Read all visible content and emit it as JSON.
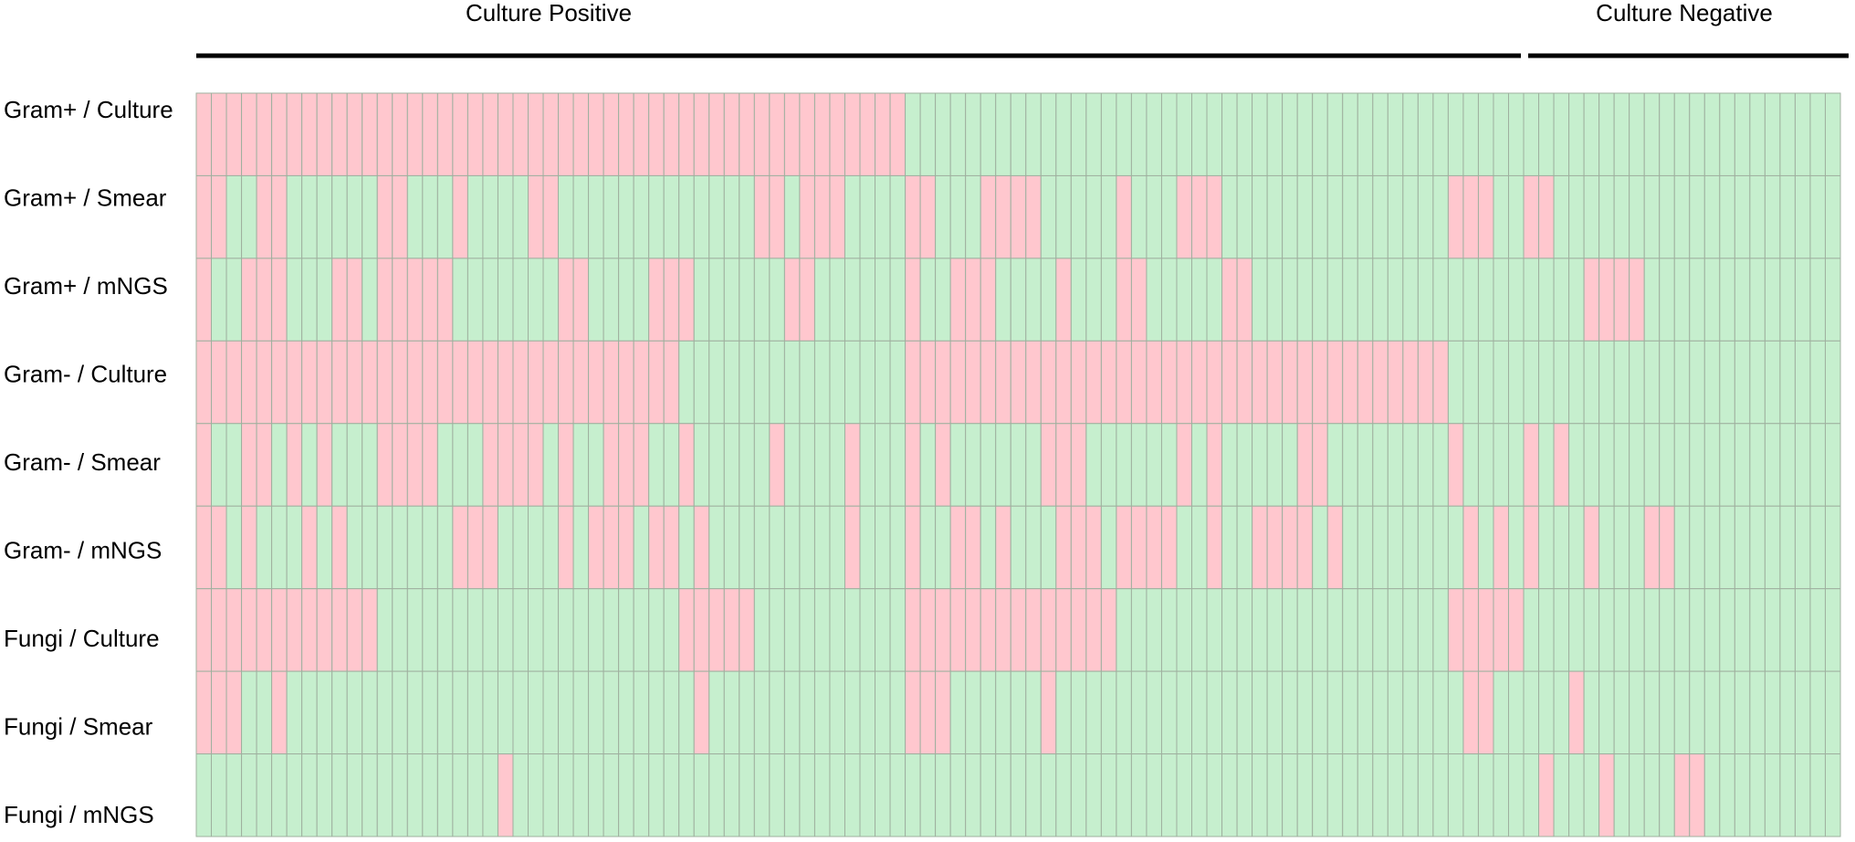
{
  "chart_data": {
    "type": "heatmap",
    "positive_color": "#ffc7ce",
    "negative_color": "#c6efce",
    "grid_color": "#9fb09f",
    "groups": [
      {
        "label": "Culture Positive",
        "columns": 88
      },
      {
        "label": "Culture Negative",
        "columns": 21
      }
    ],
    "rows": [
      {
        "name": "Gram+ / Culture",
        "values": [
          1,
          1,
          1,
          1,
          1,
          1,
          1,
          1,
          1,
          1,
          1,
          1,
          1,
          1,
          1,
          1,
          1,
          1,
          1,
          1,
          1,
          1,
          1,
          1,
          1,
          1,
          1,
          1,
          1,
          1,
          1,
          1,
          1,
          1,
          1,
          1,
          1,
          1,
          1,
          1,
          1,
          1,
          1,
          1,
          1,
          1,
          1,
          0,
          0,
          0,
          0,
          0,
          0,
          0,
          0,
          0,
          0,
          0,
          0,
          0,
          0,
          0,
          0,
          0,
          0,
          0,
          0,
          0,
          0,
          0,
          0,
          0,
          0,
          0,
          0,
          0,
          0,
          0,
          0,
          0,
          0,
          0,
          0,
          0,
          0,
          0,
          0,
          0,
          0,
          0,
          0,
          0,
          0,
          0,
          0,
          0,
          0,
          0,
          0,
          0,
          0,
          0,
          0,
          0,
          0,
          0,
          0,
          0,
          0
        ]
      },
      {
        "name": "Gram+ / Smear",
        "values": [
          1,
          1,
          0,
          0,
          1,
          1,
          0,
          0,
          0,
          0,
          0,
          0,
          1,
          1,
          0,
          0,
          0,
          1,
          0,
          0,
          0,
          0,
          1,
          1,
          0,
          0,
          0,
          0,
          0,
          0,
          0,
          0,
          0,
          0,
          0,
          0,
          0,
          1,
          1,
          0,
          1,
          1,
          1,
          0,
          0,
          0,
          0,
          1,
          1,
          0,
          0,
          0,
          1,
          1,
          1,
          1,
          0,
          0,
          0,
          0,
          0,
          1,
          0,
          0,
          0,
          1,
          1,
          1,
          0,
          0,
          0,
          0,
          0,
          0,
          0,
          0,
          0,
          0,
          0,
          0,
          0,
          0,
          0,
          1,
          1,
          1,
          0,
          0,
          1,
          1,
          0,
          0,
          0,
          0,
          0,
          0,
          0,
          0,
          0,
          0,
          0,
          0,
          0,
          0,
          0,
          0,
          0,
          0,
          0
        ]
      },
      {
        "name": "Gram+ / mNGS",
        "values": [
          1,
          0,
          0,
          1,
          1,
          1,
          0,
          0,
          0,
          1,
          1,
          0,
          1,
          1,
          1,
          1,
          1,
          0,
          0,
          0,
          0,
          0,
          0,
          0,
          1,
          1,
          0,
          0,
          0,
          0,
          1,
          1,
          1,
          0,
          0,
          0,
          0,
          0,
          0,
          1,
          1,
          0,
          0,
          0,
          0,
          0,
          0,
          1,
          0,
          0,
          1,
          1,
          1,
          0,
          0,
          0,
          0,
          1,
          0,
          0,
          0,
          1,
          1,
          0,
          0,
          0,
          0,
          0,
          1,
          1,
          0,
          0,
          0,
          0,
          0,
          0,
          0,
          0,
          0,
          0,
          0,
          0,
          0,
          0,
          0,
          0,
          0,
          0,
          0,
          0,
          0,
          0,
          1,
          1,
          1,
          1,
          0,
          0,
          0,
          0,
          0,
          0,
          0,
          0,
          0,
          0,
          0,
          0,
          0
        ]
      },
      {
        "name": "Gram- / Culture",
        "values": [
          1,
          1,
          1,
          1,
          1,
          1,
          1,
          1,
          1,
          1,
          1,
          1,
          1,
          1,
          1,
          1,
          1,
          1,
          1,
          1,
          1,
          1,
          1,
          1,
          1,
          1,
          1,
          1,
          1,
          1,
          1,
          1,
          0,
          0,
          0,
          0,
          0,
          0,
          0,
          0,
          0,
          0,
          0,
          0,
          0,
          0,
          0,
          1,
          1,
          1,
          1,
          1,
          1,
          1,
          1,
          1,
          1,
          1,
          1,
          1,
          1,
          1,
          1,
          1,
          1,
          1,
          1,
          1,
          1,
          1,
          1,
          1,
          1,
          1,
          1,
          1,
          1,
          1,
          1,
          1,
          1,
          1,
          1,
          0,
          0,
          0,
          0,
          0,
          0,
          0,
          0,
          0,
          0,
          0,
          0,
          0,
          0,
          0,
          0,
          0,
          0,
          0,
          0,
          0,
          0,
          0,
          0,
          0,
          0
        ]
      },
      {
        "name": "Gram- / Smear",
        "values": [
          1,
          0,
          0,
          1,
          1,
          0,
          1,
          0,
          1,
          0,
          0,
          0,
          1,
          1,
          1,
          1,
          0,
          0,
          0,
          1,
          1,
          1,
          1,
          0,
          1,
          0,
          0,
          1,
          1,
          1,
          0,
          0,
          1,
          0,
          0,
          0,
          0,
          0,
          1,
          0,
          0,
          0,
          0,
          1,
          0,
          0,
          0,
          1,
          0,
          1,
          0,
          0,
          0,
          0,
          0,
          0,
          1,
          1,
          1,
          0,
          0,
          0,
          0,
          0,
          0,
          1,
          0,
          1,
          0,
          0,
          0,
          0,
          0,
          1,
          1,
          0,
          0,
          0,
          0,
          0,
          0,
          0,
          0,
          1,
          0,
          0,
          0,
          0,
          1,
          0,
          1,
          0,
          0,
          0,
          0,
          0,
          0,
          0,
          0,
          0,
          0,
          0,
          0,
          0,
          0,
          0,
          0,
          0,
          0
        ]
      },
      {
        "name": "Gram- / mNGS",
        "values": [
          1,
          1,
          0,
          1,
          0,
          0,
          0,
          1,
          0,
          1,
          0,
          0,
          0,
          0,
          0,
          0,
          0,
          1,
          1,
          1,
          0,
          0,
          0,
          0,
          1,
          0,
          1,
          1,
          1,
          0,
          1,
          1,
          0,
          1,
          0,
          0,
          0,
          0,
          0,
          0,
          0,
          0,
          0,
          1,
          0,
          0,
          0,
          1,
          0,
          0,
          1,
          1,
          0,
          1,
          0,
          0,
          0,
          1,
          1,
          1,
          0,
          1,
          1,
          1,
          1,
          0,
          0,
          1,
          0,
          0,
          1,
          1,
          1,
          1,
          0,
          1,
          0,
          0,
          0,
          0,
          0,
          0,
          0,
          0,
          1,
          0,
          1,
          0,
          1,
          0,
          0,
          0,
          1,
          0,
          0,
          0,
          1,
          1,
          0,
          0,
          0,
          0,
          0,
          0,
          0,
          0,
          0,
          0,
          0
        ]
      },
      {
        "name": "Fungi / Culture",
        "values": [
          1,
          1,
          1,
          1,
          1,
          1,
          1,
          1,
          1,
          1,
          1,
          1,
          0,
          0,
          0,
          0,
          0,
          0,
          0,
          0,
          0,
          0,
          0,
          0,
          0,
          0,
          0,
          0,
          0,
          0,
          0,
          0,
          1,
          1,
          1,
          1,
          1,
          0,
          0,
          0,
          0,
          0,
          0,
          0,
          0,
          0,
          0,
          1,
          1,
          1,
          1,
          1,
          1,
          1,
          1,
          1,
          1,
          1,
          1,
          1,
          1,
          0,
          0,
          0,
          0,
          0,
          0,
          0,
          0,
          0,
          0,
          0,
          0,
          0,
          0,
          0,
          0,
          0,
          0,
          0,
          0,
          0,
          0,
          1,
          1,
          1,
          1,
          1,
          0,
          0,
          0,
          0,
          0,
          0,
          0,
          0,
          0,
          0,
          0,
          0,
          0,
          0,
          0,
          0,
          0,
          0,
          0,
          0,
          0
        ]
      },
      {
        "name": "Fungi / Smear",
        "values": [
          1,
          1,
          1,
          0,
          0,
          1,
          0,
          0,
          0,
          0,
          0,
          0,
          0,
          0,
          0,
          0,
          0,
          0,
          0,
          0,
          0,
          0,
          0,
          0,
          0,
          0,
          0,
          0,
          0,
          0,
          0,
          0,
          0,
          1,
          0,
          0,
          0,
          0,
          0,
          0,
          0,
          0,
          0,
          0,
          0,
          0,
          0,
          1,
          1,
          1,
          0,
          0,
          0,
          0,
          0,
          0,
          1,
          0,
          0,
          0,
          0,
          0,
          0,
          0,
          0,
          0,
          0,
          0,
          0,
          0,
          0,
          0,
          0,
          0,
          0,
          0,
          0,
          0,
          0,
          0,
          0,
          0,
          0,
          0,
          1,
          1,
          0,
          0,
          0,
          0,
          0,
          1,
          0,
          0,
          0,
          0,
          0,
          0,
          0,
          0,
          0,
          0,
          0,
          0,
          0,
          0,
          0,
          0,
          0
        ]
      },
      {
        "name": "Fungi / mNGS",
        "values": [
          0,
          0,
          0,
          0,
          0,
          0,
          0,
          0,
          0,
          0,
          0,
          0,
          0,
          0,
          0,
          0,
          0,
          0,
          0,
          0,
          1,
          0,
          0,
          0,
          0,
          0,
          0,
          0,
          0,
          0,
          0,
          0,
          0,
          0,
          0,
          0,
          0,
          0,
          0,
          0,
          0,
          0,
          0,
          0,
          0,
          0,
          0,
          0,
          0,
          0,
          0,
          0,
          0,
          0,
          0,
          0,
          0,
          0,
          0,
          0,
          0,
          0,
          0,
          0,
          0,
          0,
          0,
          0,
          0,
          0,
          0,
          0,
          0,
          0,
          0,
          0,
          0,
          0,
          0,
          0,
          0,
          0,
          0,
          0,
          0,
          0,
          0,
          0,
          0,
          1,
          0,
          0,
          0,
          1,
          0,
          0,
          0,
          0,
          1,
          1,
          0,
          0,
          0,
          0,
          0,
          0,
          0,
          0,
          0
        ]
      }
    ]
  }
}
